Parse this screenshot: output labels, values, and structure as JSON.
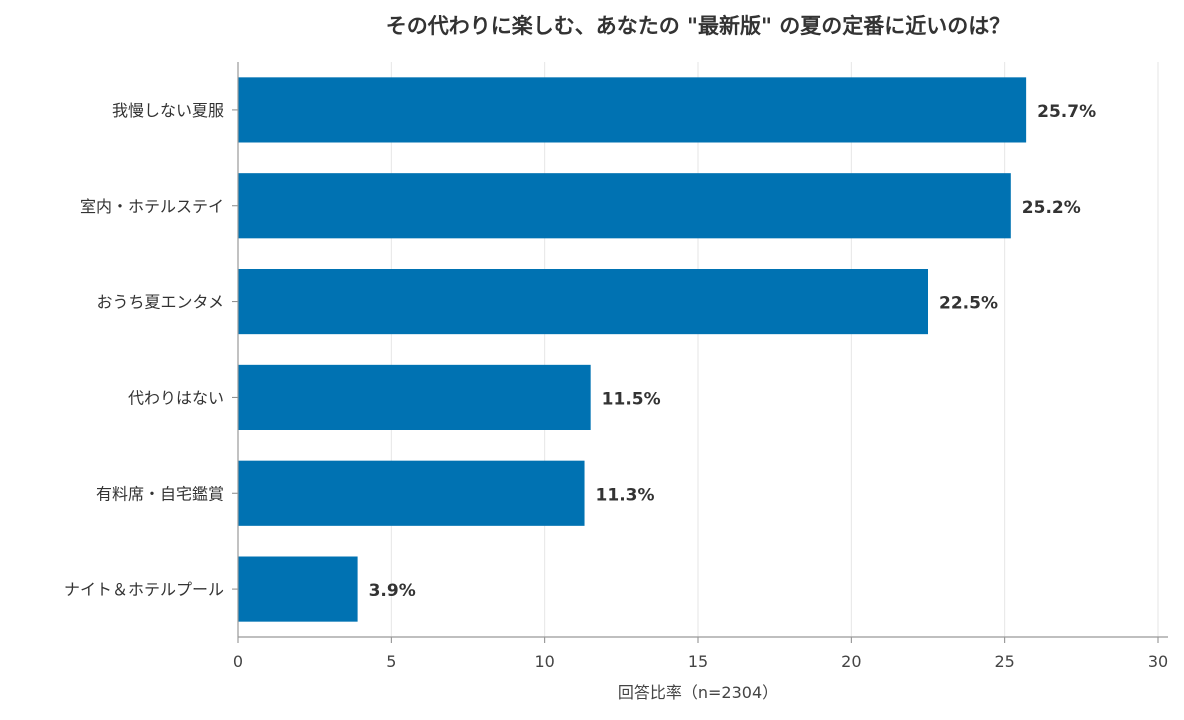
{
  "chart_data": {
    "type": "bar",
    "orientation": "horizontal",
    "title": "その代わりに楽しむ、あなたの \"最新版\" の夏の定番に近いのは？",
    "xlabel": "回答比率（n=2304）",
    "ylabel": "",
    "categories": [
      "我慢しない夏服",
      "室内・ホテルステイ",
      "おうち夏エンタメ",
      "代わりはない",
      "有料席・自宅鑑賞",
      "ナイト＆ホテルプール"
    ],
    "values": [
      25.7,
      25.2,
      22.5,
      11.5,
      11.3,
      3.9
    ],
    "value_labels": [
      "25.7%",
      "25.2%",
      "22.5%",
      "11.5%",
      "11.3%",
      "3.9%"
    ],
    "xlim": [
      0,
      30
    ],
    "xticks": [
      0,
      5,
      10,
      15,
      20,
      25,
      30
    ],
    "grid": "vertical",
    "bar_color": "#0072b2"
  }
}
